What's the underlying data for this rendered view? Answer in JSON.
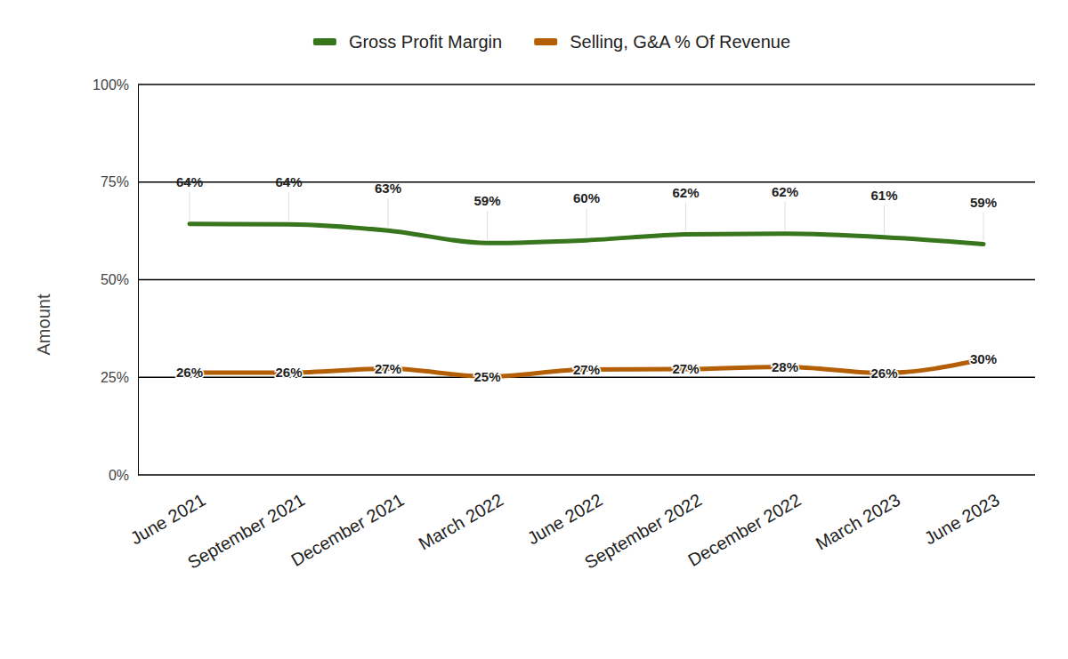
{
  "chart_data": {
    "type": "line",
    "y_label": "Amount",
    "categories": [
      "June 2021",
      "September 2021",
      "December 2021",
      "March 2022",
      "June 2022",
      "September 2022",
      "December 2022",
      "March 2023",
      "June 2023"
    ],
    "series": [
      {
        "name": "Gross Profit Margin",
        "color": "#38761d",
        "values": [
          64.3,
          64.2,
          62.6,
          59.4,
          60.1,
          61.6,
          61.8,
          60.9,
          59.1
        ],
        "value_labels": [
          "64%",
          "64%",
          "63%",
          "59%",
          "60%",
          "62%",
          "62%",
          "61%",
          "59%"
        ]
      },
      {
        "name": "Selling, G&A % Of Revenue",
        "color": "#b45f06",
        "values": [
          26.2,
          26.2,
          27.2,
          25.2,
          27.0,
          27.1,
          27.7,
          26.1,
          29.6
        ],
        "value_labels": [
          "26%",
          "26%",
          "27%",
          "25%",
          "27%",
          "27%",
          "28%",
          "26%",
          "30%"
        ]
      }
    ],
    "ylim": [
      0,
      100
    ],
    "yticks": [
      {
        "value": 0,
        "label": "0%"
      },
      {
        "value": 25,
        "label": "25%"
      },
      {
        "value": 50,
        "label": "50%"
      },
      {
        "value": 75,
        "label": "75%"
      },
      {
        "value": 100,
        "label": "100%"
      }
    ],
    "grid": true,
    "legend": "top",
    "data_labels": true
  }
}
